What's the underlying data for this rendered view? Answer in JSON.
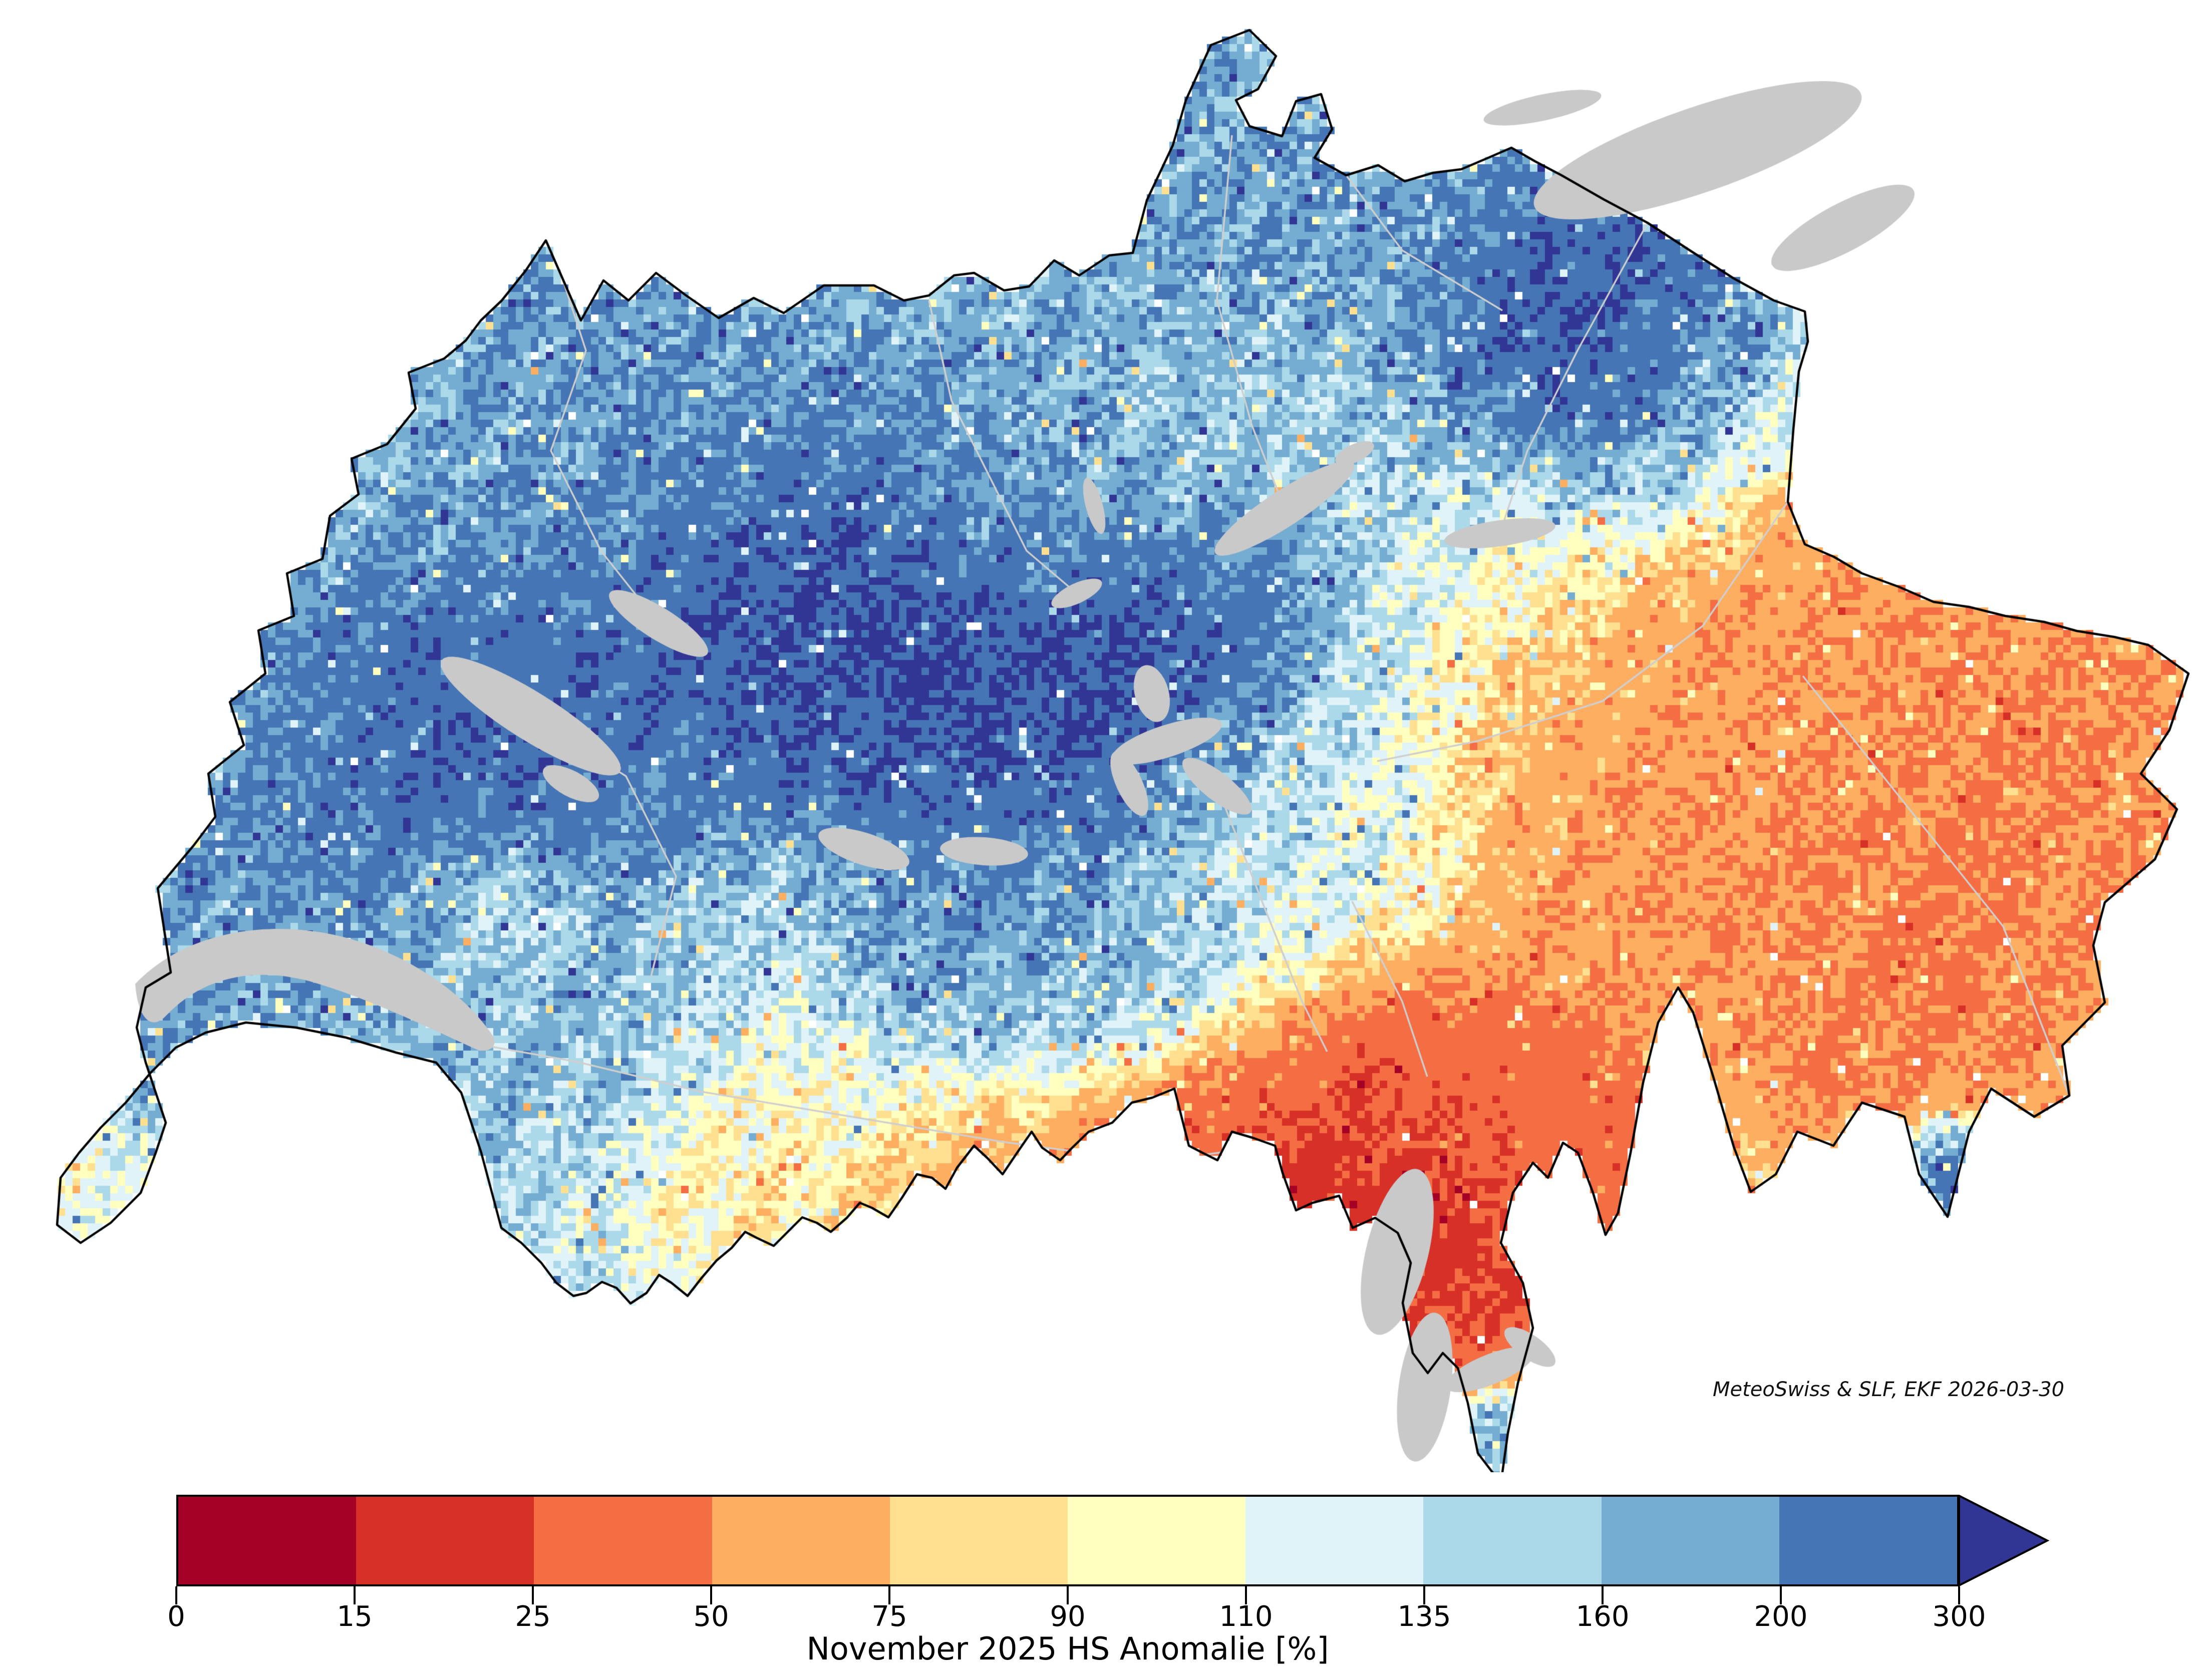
{
  "chart_data": {
    "type": "heatmap",
    "title": "November 2025 HS Anomalie [%]",
    "attribution": "MeteoSwiss & SLF, EKF 2026-03-30",
    "colorbar": {
      "label": "November 2025 HS Anomalie [%]",
      "orientation": "horizontal",
      "arrow": "right",
      "tick_labels": [
        "0",
        "15",
        "25",
        "50",
        "75",
        "90",
        "110",
        "135",
        "160",
        "200",
        "300"
      ],
      "boundaries_pct": [
        0,
        15,
        25,
        50,
        75,
        90,
        110,
        135,
        160,
        200,
        300
      ],
      "segment_colors": [
        "#a50026",
        "#d73027",
        "#f46d43",
        "#fdae61",
        "#fee090",
        "#ffffbf",
        "#e0f3f8",
        "#abd9e9",
        "#74add1",
        "#4575b4"
      ],
      "over_color": "#313695",
      "colormap": "RdYlBu (discrete)"
    },
    "map": {
      "region": "Switzerland",
      "variable": "Snow depth (HS) anomaly",
      "unit": "%",
      "period": "November 2025",
      "lake_color": "#c9c9c9",
      "national_border_color": "#000000",
      "canton_border_color": "#cfcfcf",
      "no_data_color": "#ffffff",
      "regions_approx": [
        {
          "area": "Jura and northwest Switzerland",
          "anomaly_pct": "160-300"
        },
        {
          "area": "Central Plateau / western Prealps (Bern, Emmental)",
          "anomaly_pct": "200 to >300"
        },
        {
          "area": "Northeast (Saentis / Appenzell)",
          "anomaly_pct": "200 to >300"
        },
        {
          "area": "Central transition belt (Lucerne - Glarus)",
          "anomaly_pct": "90-135"
        },
        {
          "area": "Grisons (east)",
          "anomaly_pct": "25-50"
        },
        {
          "area": "Southern Valais (Zermatt / Simplon)",
          "anomaly_pct": "10-50"
        },
        {
          "area": "Ticino (south)",
          "anomaly_pct": "0-25"
        },
        {
          "area": "Southernmost Ticino tip and Val Poschiavo",
          "anomaly_pct": "135 to >300"
        }
      ]
    }
  }
}
